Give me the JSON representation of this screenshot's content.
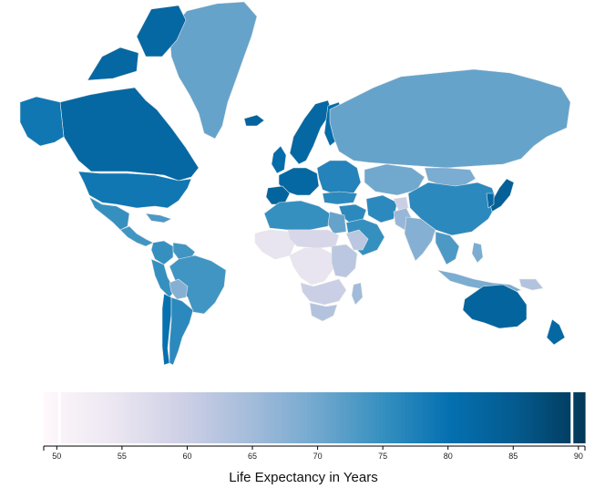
{
  "legend": {
    "title": "Life Expectancy in Years",
    "min": 49,
    "max": 90.5,
    "ticks": [
      50,
      55,
      60,
      65,
      70,
      75,
      80,
      85,
      90
    ],
    "tick_labels": [
      "50",
      "55",
      "60",
      "65",
      "70",
      "75",
      "80",
      "85",
      "90"
    ],
    "color_stops": [
      "#fff7fb",
      "#ece7f2",
      "#d0d1e6",
      "#a6bddb",
      "#74a9cf",
      "#3690c0",
      "#0570b0",
      "#045a8d",
      "#023858"
    ]
  },
  "regions": [
    {
      "name": "Greenland",
      "value": 71
    },
    {
      "name": "Canada",
      "value": 82
    },
    {
      "name": "Alaska",
      "value": 79
    },
    {
      "name": "United States",
      "value": 79
    },
    {
      "name": "Mexico",
      "value": 75
    },
    {
      "name": "Central America",
      "value": 74
    },
    {
      "name": "Caribbean",
      "value": 73
    },
    {
      "name": "Colombia",
      "value": 75
    },
    {
      "name": "Venezuela",
      "value": 74
    },
    {
      "name": "Peru",
      "value": 75
    },
    {
      "name": "Brazil",
      "value": 74
    },
    {
      "name": "Bolivia",
      "value": 68
    },
    {
      "name": "Chile",
      "value": 80
    },
    {
      "name": "Argentina",
      "value": 76
    },
    {
      "name": "Iceland",
      "value": 83
    },
    {
      "name": "Scandinavia",
      "value": 82
    },
    {
      "name": "Finland",
      "value": 81
    },
    {
      "name": "United Kingdom",
      "value": 81
    },
    {
      "name": "Western Europe",
      "value": 82
    },
    {
      "name": "Iberia",
      "value": 83
    },
    {
      "name": "Eastern Europe",
      "value": 77
    },
    {
      "name": "Russia",
      "value": 71
    },
    {
      "name": "Kazakhstan",
      "value": 70
    },
    {
      "name": "Mongolia",
      "value": 69
    },
    {
      "name": "China",
      "value": 76
    },
    {
      "name": "Japan",
      "value": 84
    },
    {
      "name": "Korea",
      "value": 82
    },
    {
      "name": "Turkey",
      "value": 76
    },
    {
      "name": "Middle East",
      "value": 76
    },
    {
      "name": "Arabia",
      "value": 75
    },
    {
      "name": "Iran",
      "value": 76
    },
    {
      "name": "Afghanistan",
      "value": 60
    },
    {
      "name": "Pakistan",
      "value": 66
    },
    {
      "name": "India",
      "value": 68
    },
    {
      "name": "Southeast Asia",
      "value": 73
    },
    {
      "name": "Indonesia",
      "value": 69
    },
    {
      "name": "Philippines",
      "value": 69
    },
    {
      "name": "Papua New Guinea",
      "value": 63
    },
    {
      "name": "Australia",
      "value": 83
    },
    {
      "name": "New Zealand",
      "value": 82
    },
    {
      "name": "North Africa",
      "value": 75
    },
    {
      "name": "Egypt",
      "value": 71
    },
    {
      "name": "West Africa",
      "value": 55
    },
    {
      "name": "Sahel",
      "value": 58
    },
    {
      "name": "Central Africa",
      "value": 55
    },
    {
      "name": "East Africa",
      "value": 62
    },
    {
      "name": "Horn of Africa",
      "value": 62
    },
    {
      "name": "Southern Africa",
      "value": 60
    },
    {
      "name": "South Africa",
      "value": 63
    },
    {
      "name": "Madagascar",
      "value": 65
    }
  ]
}
